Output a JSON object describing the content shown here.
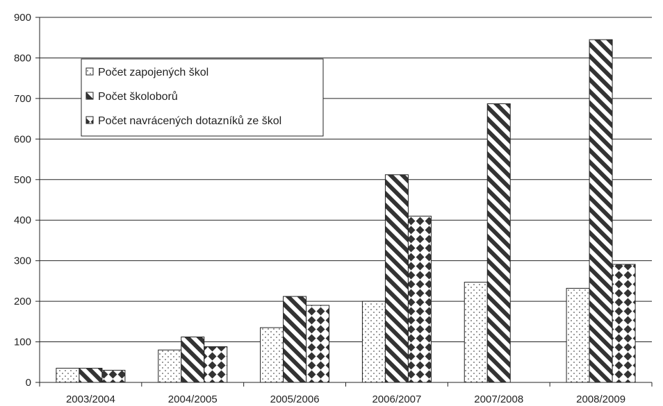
{
  "chart_data": {
    "type": "bar",
    "title": "",
    "xlabel": "",
    "ylabel": "",
    "ylim": [
      0,
      900
    ],
    "yticks": [
      0,
      100,
      200,
      300,
      400,
      500,
      600,
      700,
      800,
      900
    ],
    "grid": true,
    "legend_position": "top-left",
    "categories": [
      "2003/2004",
      "2004/2005",
      "2005/2006",
      "2006/2007",
      "2007/2008",
      "2008/2009"
    ],
    "series": [
      {
        "name": "Počet zapojených škol",
        "pattern": "dots",
        "values": [
          35,
          80,
          135,
          200,
          247,
          232
        ]
      },
      {
        "name": "Počet školoborů",
        "pattern": "diagonal-stripes",
        "values": [
          35,
          112,
          212,
          512,
          687,
          845
        ]
      },
      {
        "name": "Počet navrácených dotazníků ze škol",
        "pattern": "diamonds",
        "values": [
          30,
          88,
          190,
          410,
          null,
          291
        ]
      }
    ],
    "colors": {
      "stroke": "#222222",
      "fill": "#ffffff",
      "grid": "#222222"
    }
  }
}
